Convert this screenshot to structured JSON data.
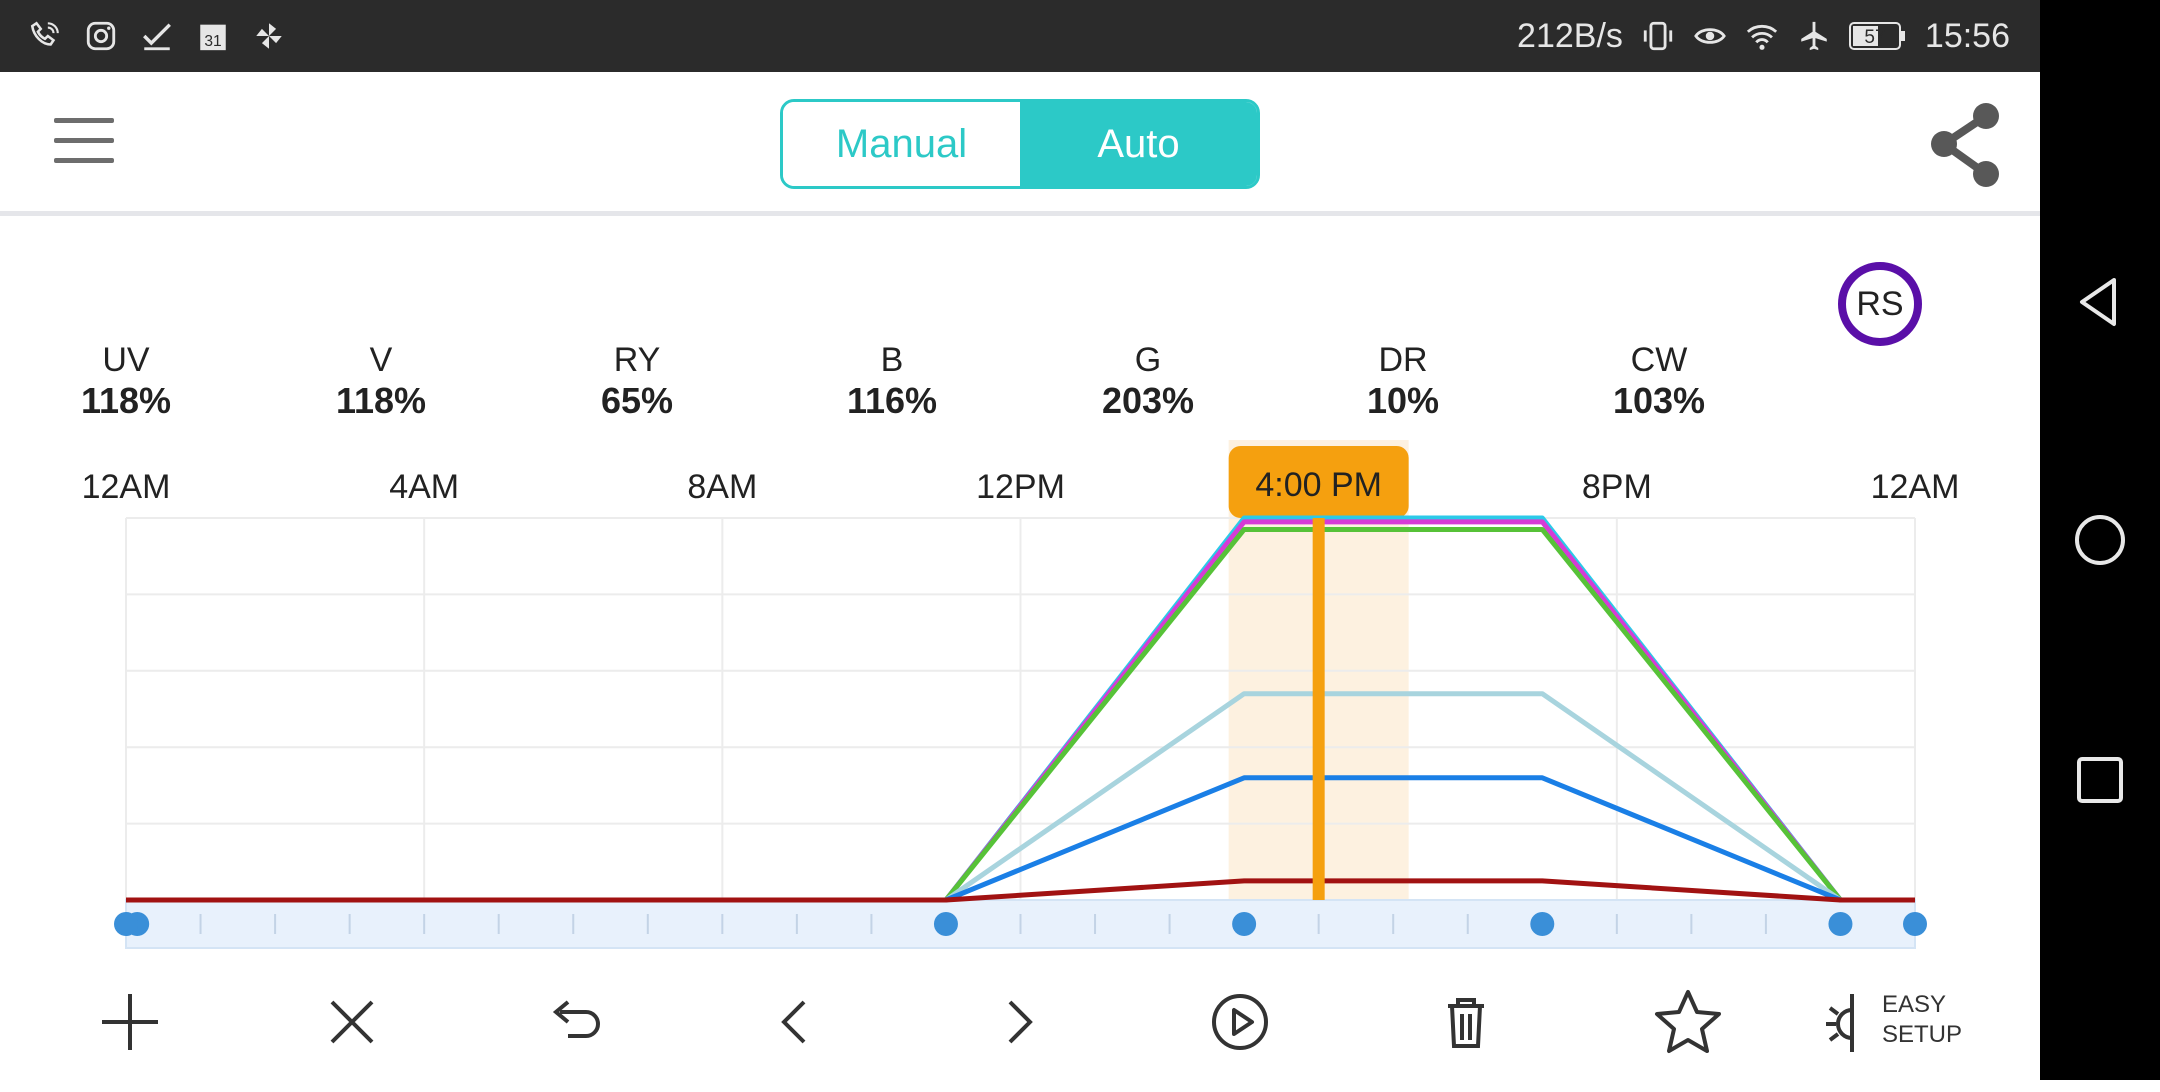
{
  "status_bar": {
    "speed": "212B/s",
    "battery": "57",
    "time": "15:56"
  },
  "header": {
    "mode_manual": "Manual",
    "mode_auto": "Auto",
    "active_mode": "Auto"
  },
  "channels": [
    {
      "label": "UV",
      "value": "118%"
    },
    {
      "label": "V",
      "value": "118%"
    },
    {
      "label": "RY",
      "value": "65%"
    },
    {
      "label": "B",
      "value": "116%"
    },
    {
      "label": "G",
      "value": "203%"
    },
    {
      "label": "DR",
      "value": "10%"
    },
    {
      "label": "CW",
      "value": "103%"
    }
  ],
  "rs_button": "RS",
  "chart_data": {
    "type": "line",
    "x_ticks": [
      "12AM",
      "4AM",
      "8AM",
      "12PM",
      "4:00 PM",
      "8PM",
      "12AM"
    ],
    "current_time_label": "4:00 PM",
    "current_hour": 16,
    "points_hours": [
      0,
      11,
      15,
      19,
      23,
      24
    ],
    "ylim": [
      0,
      100
    ],
    "series": [
      {
        "color": "#2bc9e8",
        "values": [
          0,
          0,
          100,
          100,
          0,
          0
        ]
      },
      {
        "color": "#d63bd6",
        "values": [
          0,
          0,
          99,
          99,
          0,
          0
        ]
      },
      {
        "color": "#57c238",
        "values": [
          0,
          0,
          97,
          97,
          0,
          0
        ]
      },
      {
        "color": "#a8d4de",
        "values": [
          0,
          0,
          54,
          54,
          0,
          0
        ]
      },
      {
        "color": "#1a7fe6",
        "values": [
          0,
          0,
          32,
          32,
          0,
          0
        ]
      },
      {
        "color": "#a11212",
        "values": [
          0,
          0,
          5,
          5,
          0,
          0
        ]
      }
    ]
  },
  "toolbar": {
    "easy_setup_line1": "EASY",
    "easy_setup_line2": "SETUP"
  },
  "colors": {
    "accent": "#2cc9c7",
    "highlight": "#f5a00f",
    "rs_ring": "#5a0fa8"
  }
}
